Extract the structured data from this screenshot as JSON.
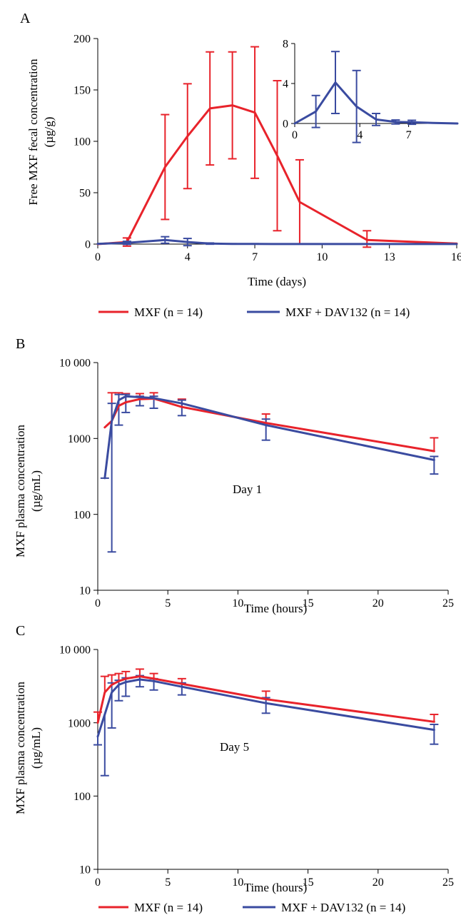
{
  "colors": {
    "mxf": "#e8232b",
    "dav": "#3a4ba0"
  },
  "legend": [
    {
      "label": "MXF (n = 14)",
      "color": "#e8232b"
    },
    {
      "label": "MXF + DAV132 (n = 14)",
      "color": "#3a4ba0"
    }
  ],
  "chart_data": [
    {
      "panel": "A",
      "type": "line",
      "xlabel": "Time (days)",
      "ylabel": [
        "Free MXF fecal concentration",
        "(µg/g)"
      ],
      "xticks": [
        0,
        4,
        7,
        10,
        13,
        16
      ],
      "yticks": [
        0,
        50,
        100,
        150,
        200
      ],
      "xlim": [
        0,
        16
      ],
      "ylim": [
        0,
        200
      ],
      "grid": false,
      "legend_position": "below",
      "series": [
        {
          "name": "MXF (n = 14)",
          "x": [
            0,
            1.3,
            3,
            4,
            5,
            6,
            7,
            8,
            9,
            12,
            16
          ],
          "y": [
            0,
            2,
            75,
            105,
            132,
            135,
            128,
            86,
            41,
            4,
            0.5
          ],
          "err": [
            0,
            4,
            51,
            51,
            55,
            52,
            64,
            73,
            41,
            9,
            0
          ]
        },
        {
          "name": "MXF + DAV132 (n = 14)",
          "x": [
            0,
            1.3,
            3,
            4,
            5,
            6,
            7,
            8,
            9,
            12,
            16
          ],
          "y": [
            0.3,
            1.2,
            4,
            2,
            0.5,
            0.2,
            0.2,
            0.1,
            0.1,
            0.1,
            0.1
          ],
          "err": [
            0,
            1.5,
            3.2,
            3.5,
            0.6,
            0.2,
            0.2,
            0,
            0,
            0,
            0
          ]
        }
      ],
      "inset": {
        "xticks": [
          0,
          4,
          7
        ],
        "yticks": [
          0,
          4,
          8
        ],
        "xlim": [
          0,
          10
        ],
        "ylim": [
          0,
          8
        ],
        "x": [
          0,
          1.3,
          2.5,
          3.8,
          5,
          6.2,
          7.2,
          8.5,
          10
        ],
        "y": [
          0,
          1.2,
          4.1,
          1.7,
          0.4,
          0.15,
          0.12,
          0.05,
          0
        ],
        "err": [
          0,
          1.6,
          3.1,
          3.6,
          0.6,
          0.2,
          0.2,
          0,
          0
        ]
      }
    },
    {
      "panel": "B",
      "type": "line",
      "scale": "log",
      "xlabel": "Time (hours)",
      "ylabel": [
        "MXF plasma concentration",
        "(µg/mL)"
      ],
      "annotation": "Day 1",
      "xticks": [
        0,
        5,
        10,
        15,
        20,
        25
      ],
      "yticks": [
        10,
        100,
        1000,
        10000
      ],
      "ytick_labels": [
        "10",
        "100",
        "1000",
        "10 000"
      ],
      "xlim": [
        0,
        25
      ],
      "ylim": [
        10,
        10000
      ],
      "grid": false,
      "series": [
        {
          "name": "MXF (n = 14)",
          "x": [
            0.5,
            1,
            1.5,
            2,
            3,
            4,
            6,
            12,
            24
          ],
          "y": [
            1400,
            1700,
            2700,
            3000,
            3300,
            3350,
            2600,
            1600,
            680
          ],
          "up": [
            1400,
            4000,
            4000,
            3900,
            3900,
            4000,
            3300,
            2100,
            1020
          ]
        },
        {
          "name": "MXF + DAV132 (n = 14)",
          "x": [
            0.5,
            1,
            1.5,
            2,
            3,
            4,
            6,
            12,
            24
          ],
          "y": [
            300,
            1700,
            3200,
            3600,
            3500,
            3400,
            2900,
            1500,
            520
          ],
          "lo": [
            300,
            32,
            1500,
            2200,
            2700,
            2500,
            2000,
            950,
            340
          ],
          "up": [
            300,
            2900,
            3800,
            3800,
            3600,
            3600,
            3200,
            1800,
            580
          ]
        }
      ]
    },
    {
      "panel": "C",
      "type": "line",
      "scale": "log",
      "xlabel": "Time (hours)",
      "ylabel": [
        "MXF plasma concentration",
        "(µg/mL)"
      ],
      "annotation": "Day 5",
      "xticks": [
        0,
        5,
        10,
        15,
        20,
        25
      ],
      "yticks": [
        10,
        100,
        1000,
        10000
      ],
      "ytick_labels": [
        "10",
        "100",
        "1000",
        "10 000"
      ],
      "xlim": [
        0,
        25
      ],
      "ylim": [
        10,
        10000
      ],
      "grid": false,
      "legend_position": "below",
      "series": [
        {
          "name": "MXF (n = 14)",
          "x": [
            0,
            0.5,
            1,
            1.5,
            2,
            3,
            4,
            6,
            12,
            24
          ],
          "y": [
            1000,
            2600,
            3300,
            3700,
            4000,
            4300,
            4000,
            3400,
            2100,
            1030
          ],
          "up": [
            1400,
            4300,
            4500,
            4700,
            5000,
            5400,
            4700,
            4000,
            2700,
            1300
          ]
        },
        {
          "name": "MXF + DAV132 (n = 14)",
          "x": [
            0,
            0.5,
            1,
            1.5,
            2,
            3,
            4,
            6,
            12,
            24
          ],
          "y": [
            650,
            1300,
            2600,
            3300,
            3600,
            3900,
            3700,
            3100,
            1850,
            800
          ],
          "lo": [
            500,
            190,
            850,
            2000,
            2300,
            3100,
            2800,
            2400,
            1350,
            510
          ],
          "up": [
            650,
            1300,
            3500,
            3800,
            4100,
            4400,
            4000,
            3500,
            2200,
            950
          ]
        }
      ]
    }
  ]
}
